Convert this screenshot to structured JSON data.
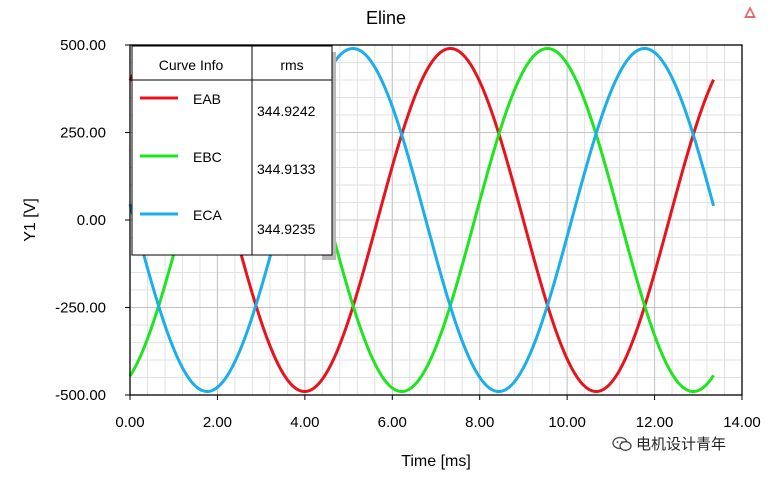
{
  "chart_data": {
    "type": "line",
    "title": "Eline",
    "xlabel": "Time [ms]",
    "ylabel": "Y1 [V]",
    "xlim": [
      0,
      14
    ],
    "ylim": [
      -500,
      500
    ],
    "x_ticks": [
      "0.00",
      "2.00",
      "4.00",
      "6.00",
      "8.00",
      "10.00",
      "12.00",
      "14.00"
    ],
    "y_ticks": [
      "500.00",
      "250.00",
      "0.00",
      "-250.00",
      "-500.00"
    ],
    "x_tick_values": [
      0,
      2,
      4,
      6,
      8,
      10,
      12,
      14
    ],
    "y_tick_values": [
      500,
      250,
      0,
      -250,
      -500
    ],
    "grid": true,
    "minor_grid": true,
    "x_range": [
      0,
      13.35
    ],
    "period_ms": 6.67,
    "series": [
      {
        "name": "EAB",
        "color": "#e8131c",
        "amplitude": 490,
        "peak_at_ms": 7.33,
        "rms": "344.9242"
      },
      {
        "name": "EBC",
        "color": "#1ee61e",
        "amplitude": 490,
        "peak_at_ms": 9.55,
        "rms": "344.9133"
      },
      {
        "name": "ECA",
        "color": "#1aaeea",
        "amplitude": 490,
        "peak_at_ms": 11.77,
        "rms": "344.9235"
      }
    ],
    "legend": {
      "placement": "top-left",
      "headers": [
        "Curve Info",
        "rms"
      ]
    }
  },
  "watermark": {
    "text": "电机设计青年",
    "icon": "wechat-icon"
  },
  "corner_icon": "triangle-logo-icon"
}
